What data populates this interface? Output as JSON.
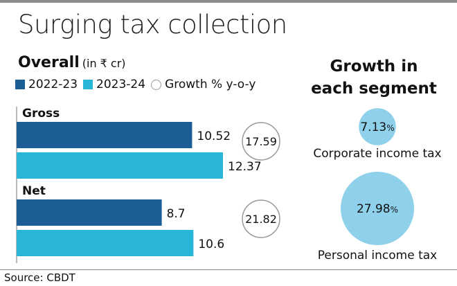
{
  "header": {
    "title": "Surging tax collection",
    "subtitle": "Overall",
    "unit": "(in ₹ cr)"
  },
  "legend": {
    "items": [
      {
        "label": "2022-23",
        "color": "#1b5e96"
      },
      {
        "label": "2023-24",
        "color": "#29b5d8"
      },
      {
        "label": "Growth % y-o-y",
        "color": "#ffffff"
      }
    ]
  },
  "segment": {
    "title_line1": "Growth in",
    "title_line2": "each segment"
  },
  "source": "Source: CBDT",
  "chart_data": [
    {
      "type": "bar",
      "title": "Overall",
      "unit": "(in ₹ cr)",
      "categories": [
        "Gross",
        "Net"
      ],
      "series": [
        {
          "name": "2022-23",
          "values": [
            10.52,
            8.7
          ],
          "color": "#1b5e96"
        },
        {
          "name": "2023-24",
          "values": [
            12.37,
            10.6
          ],
          "color": "#29b5d8"
        }
      ],
      "growth": {
        "name": "Growth % y-o-y",
        "values": [
          17.59,
          21.82
        ]
      },
      "value_labels": [
        "10.52",
        "12.37",
        "8.7",
        "10.6"
      ],
      "growth_labels": [
        "17.59",
        "21.82"
      ],
      "orientation": "horizontal",
      "xlim": [
        0,
        12.37
      ]
    },
    {
      "type": "bubble",
      "title": "Growth in each segment",
      "categories": [
        "Corporate income tax",
        "Personal income tax"
      ],
      "values": [
        7.13,
        27.98
      ],
      "value_labels": [
        "7.13",
        "27.98"
      ],
      "unit_suffix": "%",
      "color": "#8fd0ea"
    }
  ]
}
